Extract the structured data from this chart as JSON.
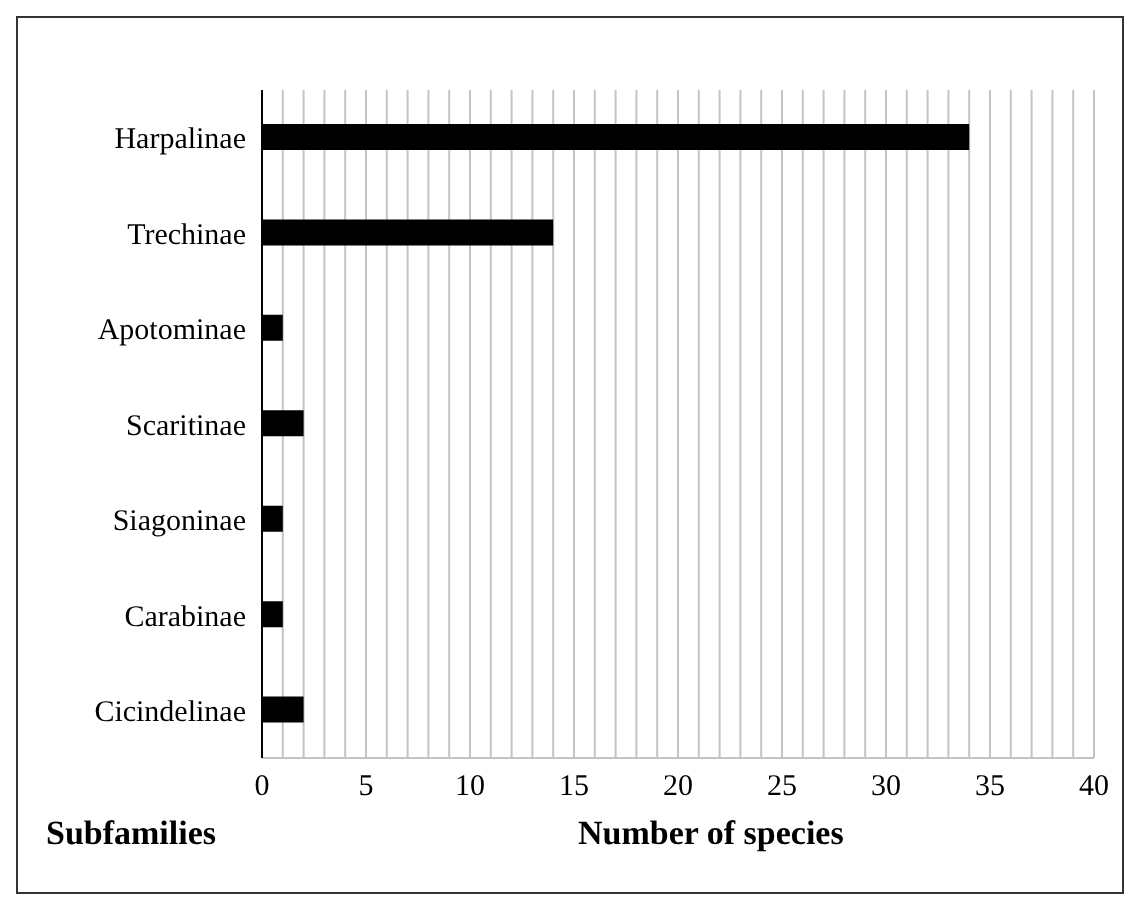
{
  "chart_data": {
    "type": "bar",
    "orientation": "horizontal",
    "xlabel": "Number of species",
    "ylabel": "Subfamilies",
    "categories": [
      "Harpalinae",
      "Trechinae",
      "Apotominae",
      "Scaritinae",
      "Siagoninae",
      "Carabinae",
      "Cicindelinae"
    ],
    "values": [
      34,
      14,
      1,
      2,
      1,
      1,
      2
    ],
    "color": "#000000",
    "xlim": [
      0,
      40
    ],
    "xticks": [
      0,
      {
        "value": 1,
        "label": null
      },
      {
        "value": 2,
        "label": null
      },
      {
        "value": 3,
        "label": null
      },
      {
        "value": 4,
        "label": null
      },
      5,
      {
        "value": 6,
        "label": null
      },
      {
        "value": 7,
        "label": null
      },
      {
        "value": 8,
        "label": null
      },
      {
        "value": 9,
        "label": null
      },
      10,
      {
        "value": 11,
        "label": null
      },
      {
        "value": 12,
        "label": null
      },
      {
        "value": 13,
        "label": null
      },
      {
        "value": 14,
        "label": null
      },
      15,
      {
        "value": 16,
        "label": null
      },
      {
        "value": 17,
        "label": null
      },
      {
        "value": 18,
        "label": null
      },
      {
        "value": 19,
        "label": null
      },
      20,
      {
        "value": 21,
        "label": null
      },
      {
        "value": 22,
        "label": null
      },
      {
        "value": 23,
        "label": null
      },
      {
        "value": 24,
        "label": null
      },
      25,
      {
        "value": 26,
        "label": null
      },
      {
        "value": 27,
        "label": null
      },
      {
        "value": 28,
        "label": null
      },
      {
        "value": 29,
        "label": null
      },
      30,
      {
        "value": 31,
        "label": null
      },
      {
        "value": 32,
        "label": null
      },
      {
        "value": 33,
        "label": null
      },
      {
        "value": 34,
        "label": null
      },
      35,
      {
        "value": 36,
        "label": null
      },
      {
        "value": 37,
        "label": null
      },
      {
        "value": 38,
        "label": null
      },
      {
        "value": 39,
        "label": null
      },
      40
    ],
    "grid": "x"
  }
}
